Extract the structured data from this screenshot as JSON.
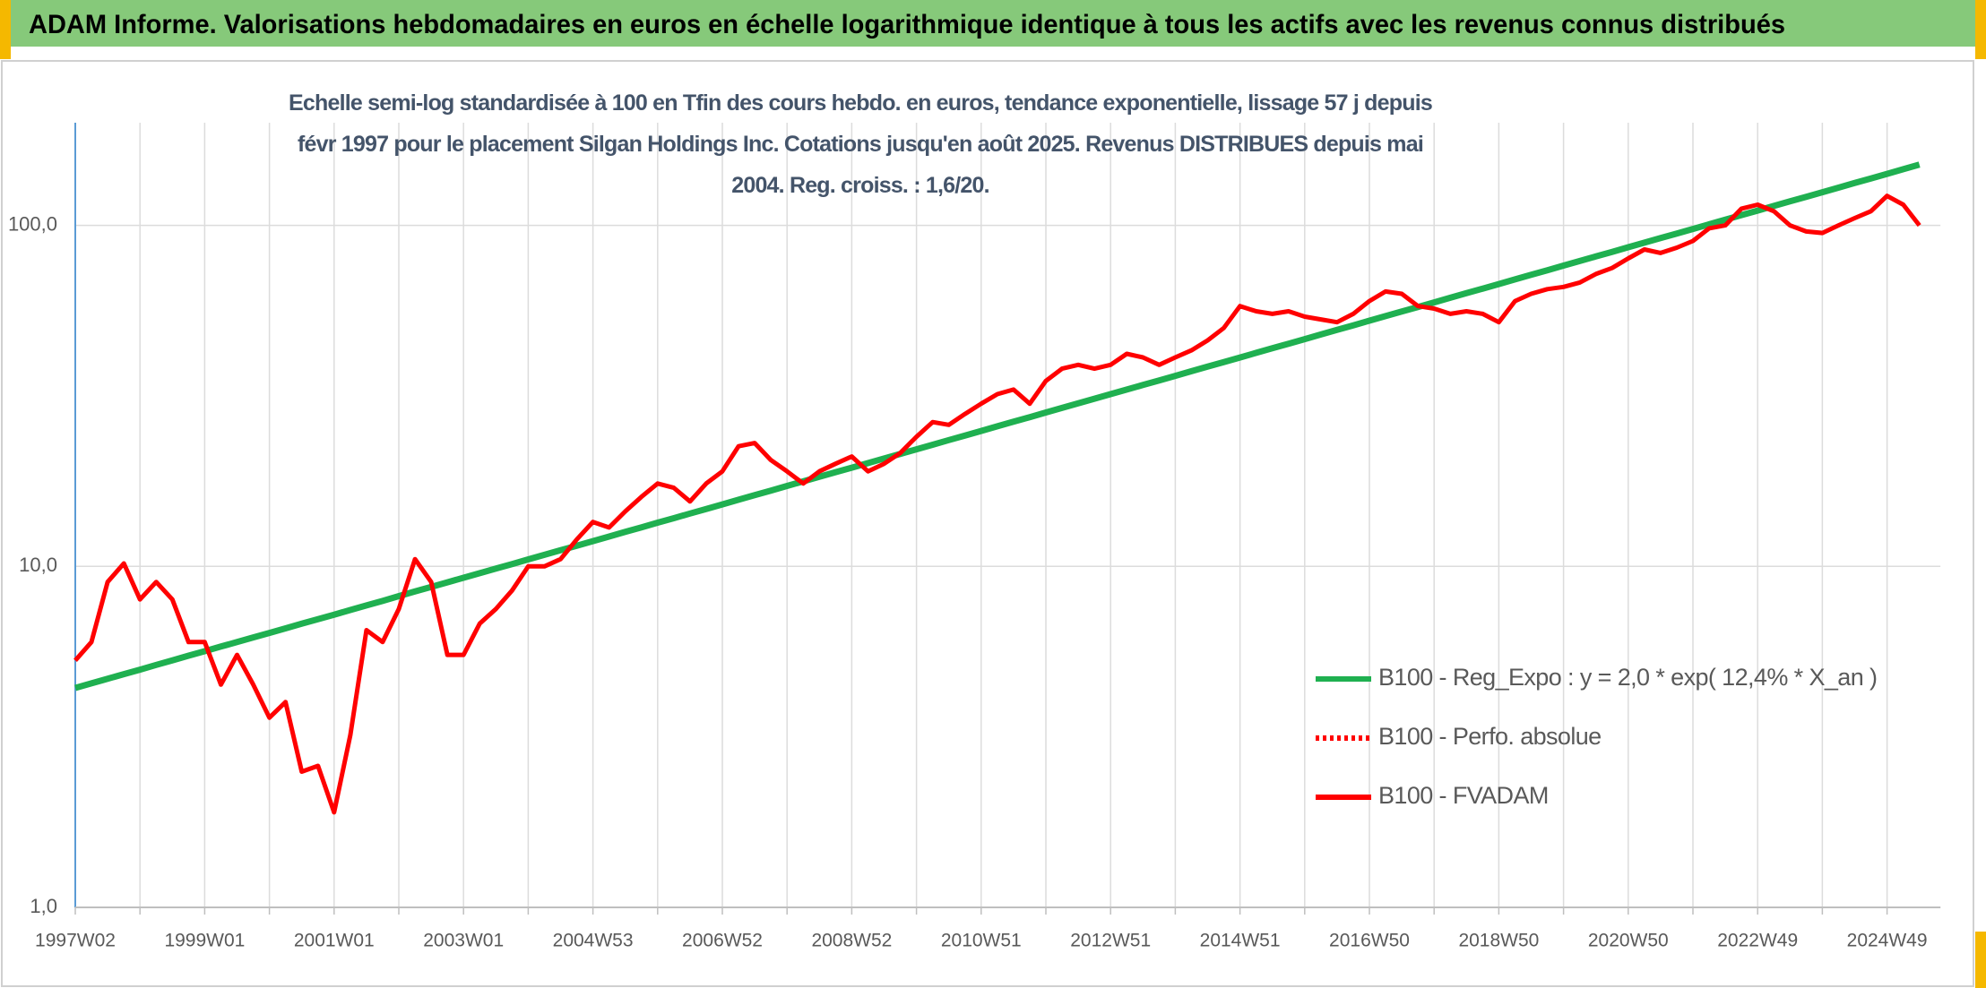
{
  "chart_data": {
    "type": "line",
    "title": "ADAM Informe. Valorisations hebdomadaires en euros en échelle logarithmique identique à tous les actifs avec les revenus connus distribués",
    "subtitle": "Echelle semi-log standardisée à 100 en Tfin des cours hebdo. en euros, tendance exponentielle, lissage 57 j depuis févr 1997 pour le placement Silgan Holdings Inc. Cotations jusqu'en août 2025. Revenus DISTRIBUES depuis mai 2004. Reg. croiss. : 1,6/20.",
    "log_scale": true,
    "grid": true,
    "legend": "right",
    "ylim": [
      1,
      200
    ],
    "yticks": [
      {
        "value": 1,
        "label": "1,0"
      },
      {
        "value": 10,
        "label": "10,0"
      },
      {
        "value": 100,
        "label": "100,0"
      }
    ],
    "categories": [
      "1997W02",
      null,
      null,
      null,
      null,
      null,
      null,
      null,
      "1999W01",
      null,
      null,
      null,
      null,
      null,
      null,
      null,
      "2001W01",
      null,
      null,
      null,
      null,
      null,
      null,
      null,
      "2003W01",
      null,
      null,
      null,
      null,
      null,
      null,
      null,
      "2004W53",
      null,
      null,
      null,
      null,
      null,
      null,
      null,
      "2006W52",
      null,
      null,
      null,
      null,
      null,
      null,
      null,
      "2008W52",
      null,
      null,
      null,
      null,
      null,
      null,
      null,
      "2010W51",
      null,
      null,
      null,
      null,
      null,
      null,
      null,
      "2012W51",
      null,
      null,
      null,
      null,
      null,
      null,
      null,
      "2014W51",
      null,
      null,
      null,
      null,
      null,
      null,
      null,
      "2016W50",
      null,
      null,
      null,
      null,
      null,
      null,
      null,
      "2018W50",
      null,
      null,
      null,
      null,
      null,
      null,
      null,
      "2020W50",
      null,
      null,
      null,
      null,
      null,
      null,
      null,
      "2022W49",
      null,
      null,
      null,
      null,
      null,
      null,
      null,
      "2024W49",
      null,
      null
    ],
    "series": [
      {
        "name": "B100 - Reg_Expo : y = 2,0 * exp( 12,4% *  X_an )",
        "color": "#1fb050",
        "dash": false,
        "values": [
          4.4,
          4.54,
          4.68,
          4.83,
          4.98,
          5.14,
          5.3,
          5.47,
          5.64,
          5.82,
          6.0,
          6.19,
          6.38,
          6.58,
          6.79,
          7.0,
          7.22,
          7.45,
          7.68,
          7.92,
          8.18,
          8.44,
          8.7,
          8.98,
          9.26,
          9.55,
          9.85,
          10.16,
          10.48,
          10.81,
          11.15,
          11.5,
          11.86,
          12.23,
          12.62,
          13.02,
          13.43,
          13.85,
          14.29,
          14.74,
          15.2,
          15.68,
          16.17,
          16.68,
          17.21,
          17.75,
          18.31,
          18.89,
          19.48,
          20.09,
          20.73,
          21.38,
          22.05,
          22.74,
          23.46,
          24.2,
          24.96,
          25.75,
          26.56,
          27.39,
          28.26,
          29.15,
          30.07,
          31.02,
          31.99,
          33.0,
          34.04,
          35.11,
          36.21,
          37.35,
          38.53,
          39.74,
          40.99,
          42.28,
          43.61,
          44.99,
          46.4,
          47.86,
          49.37,
          50.92,
          52.53,
          54.19,
          55.89,
          57.65,
          59.46,
          61.33,
          63.27,
          65.26,
          67.31,
          69.43,
          71.62,
          73.87,
          76.2,
          78.6,
          81.08,
          83.63,
          86.26,
          88.98,
          91.78,
          94.67,
          97.64,
          100.7,
          103.9,
          107.2,
          110.5,
          114.0,
          117.6,
          121.3,
          125.1,
          129.0,
          133.1,
          137.3,
          141.6,
          146.1,
          150.7
        ]
      },
      {
        "name": "B100 - Perfo. absolue",
        "color": "#ff0000",
        "dash": true,
        "values": [
          null,
          null,
          null,
          null,
          null,
          null,
          null,
          null,
          null,
          null,
          null,
          null,
          null,
          null,
          null,
          null,
          null,
          null,
          null,
          null,
          null,
          null,
          null,
          null,
          null,
          null,
          null,
          null,
          null,
          null,
          null,
          null,
          null,
          null,
          null,
          null,
          null,
          null,
          null,
          null,
          null,
          null,
          null,
          null,
          null,
          null,
          null,
          null,
          null,
          null,
          null,
          null,
          null,
          null,
          null,
          null,
          null,
          null,
          null,
          null,
          null,
          null,
          null,
          null,
          null,
          null,
          null,
          null,
          null,
          null,
          null,
          null,
          null,
          null,
          null,
          null,
          null,
          null,
          null,
          null,
          null,
          null,
          null,
          null,
          null,
          null,
          null,
          null,
          null,
          null,
          null,
          null,
          null,
          null,
          null,
          null,
          null,
          null,
          null,
          null,
          null,
          null,
          null,
          null,
          null,
          null,
          null,
          null,
          null,
          null,
          null,
          null,
          null,
          null,
          null
        ]
      },
      {
        "name": "B100 - FVADAM",
        "color": "#ff0000",
        "dash": false,
        "values": [
          5.3,
          6.0,
          9.0,
          10.2,
          8.0,
          9.0,
          8.0,
          6.0,
          6.0,
          4.5,
          5.5,
          4.5,
          3.6,
          4.0,
          2.5,
          2.6,
          1.9,
          3.2,
          6.5,
          6.0,
          7.5,
          10.5,
          9.0,
          5.5,
          5.5,
          6.8,
          7.5,
          8.5,
          10.0,
          10.0,
          10.5,
          12.0,
          13.5,
          13.0,
          14.5,
          16.0,
          17.5,
          17.0,
          15.5,
          17.5,
          19.0,
          22.5,
          23.0,
          20.5,
          19.0,
          17.5,
          19.0,
          20.0,
          21.0,
          19.0,
          20.0,
          21.5,
          24.0,
          26.5,
          26.0,
          28.0,
          30.0,
          32.0,
          33.0,
          30.0,
          35.0,
          38.0,
          39.0,
          38.0,
          39.0,
          42.0,
          41.0,
          39.0,
          41.0,
          43.0,
          46.0,
          50.0,
          58.0,
          56.0,
          55.0,
          56.0,
          54.0,
          53.0,
          52.0,
          55.0,
          60.0,
          64.0,
          63.0,
          58.0,
          57.0,
          55.0,
          56.0,
          55.0,
          52.0,
          60.0,
          63.0,
          65.0,
          66.0,
          68.0,
          72.0,
          75.0,
          80.0,
          85.0,
          83.0,
          86.0,
          90.0,
          98.0,
          100.0,
          112.0,
          115.0,
          110.0,
          100.0,
          96.0,
          95.0,
          100.0,
          105.0,
          110.0,
          122.0,
          115.0,
          100.0
        ]
      }
    ]
  }
}
